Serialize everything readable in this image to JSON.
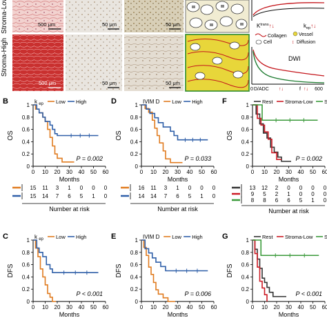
{
  "colors": {
    "low": "#e07b1f",
    "high": "#2f5fa8",
    "rest": "#333333",
    "stroma_low": "#cc1a24",
    "stroma_high": "#3a9a3a",
    "cell_bg": "#f1ecd2",
    "stroma_fill": "#e8d63a",
    "dwi_red": "#c4161c",
    "dwi_green": "#1b7a2e"
  },
  "panel_A": {
    "row_labels": [
      "Stroma-Low",
      "Stroma-High"
    ],
    "scale_bars": [
      [
        "500 μm",
        "50 μm",
        "50 μm"
      ],
      [
        "500 μm",
        "50 μm",
        "50 μm"
      ]
    ],
    "schematic_labels": [
      "Collagen",
      "Vessel",
      "Cell",
      "Diffusion"
    ],
    "ktrans_label": "K",
    "ktrans_sup": "trans",
    "kep_label": "k",
    "kep_sub": "ep",
    "dwi_title": "DWI",
    "dwi_xlabel": "D/ADC",
    "dwi_f_label": "f",
    "dwi_x0": "0",
    "dwi_x1": "600",
    "arrows": "↑↓"
  },
  "panels": [
    {
      "letter": "B",
      "ylabel": "OS",
      "legend_title": "k",
      "legend_title_sub": "ep",
      "legend": [
        {
          "name": "Low",
          "color": "low"
        },
        {
          "name": "High",
          "color": "high"
        }
      ],
      "pvalue": "P = 0.002",
      "xlabel": "Months",
      "risk_rows": [
        [
          "15",
          "11",
          "3",
          "1",
          "0",
          "0",
          "0"
        ],
        [
          "15",
          "14",
          "7",
          "6",
          "5",
          "1",
          "0"
        ]
      ],
      "risk_label": "Number at risk"
    },
    {
      "letter": "D",
      "ylabel": "OS",
      "legend_title": "IVIM D",
      "legend_title_sub": "",
      "legend": [
        {
          "name": "Low",
          "color": "low"
        },
        {
          "name": "High",
          "color": "high"
        }
      ],
      "pvalue": "P = 0.033",
      "xlabel": "Months",
      "risk_rows": [
        [
          "16",
          "11",
          "3",
          "1",
          "0",
          "0",
          "0"
        ],
        [
          "14",
          "14",
          "7",
          "6",
          "5",
          "1",
          "0"
        ]
      ],
      "risk_label": "Number at risk"
    },
    {
      "letter": "F",
      "ylabel": "OS",
      "legend_title": "",
      "legend_title_sub": "",
      "legend": [
        {
          "name": "Rest",
          "color": "rest"
        },
        {
          "name": "Stroma-Low",
          "color": "stroma_low"
        },
        {
          "name": "Stroma-High",
          "color": "stroma_high"
        }
      ],
      "pvalue": "P = 0.002",
      "xlabel": "Months",
      "risk_rows": [
        [
          "13",
          "12",
          "2",
          "0",
          "0",
          "0",
          "0"
        ],
        [
          "9",
          "5",
          "2",
          "1",
          "0",
          "0",
          "0"
        ],
        [
          "8",
          "8",
          "6",
          "6",
          "5",
          "1",
          "0"
        ]
      ],
      "risk_label": "Number at risk"
    },
    {
      "letter": "C",
      "ylabel": "DFS",
      "legend_title": "k",
      "legend_title_sub": "ep",
      "legend": [
        {
          "name": "Low",
          "color": "low"
        },
        {
          "name": "High",
          "color": "high"
        }
      ],
      "pvalue": "P < 0.001",
      "xlabel": "Months",
      "risk_rows": [],
      "risk_label": ""
    },
    {
      "letter": "E",
      "ylabel": "DFS",
      "legend_title": "IVIM D",
      "legend_title_sub": "",
      "legend": [
        {
          "name": "Low",
          "color": "low"
        },
        {
          "name": "High",
          "color": "high"
        }
      ],
      "pvalue": "P = 0.006",
      "xlabel": "Months",
      "risk_rows": [],
      "risk_label": ""
    },
    {
      "letter": "G",
      "ylabel": "DFS",
      "legend_title": "",
      "legend_title_sub": "",
      "legend": [
        {
          "name": "Rest",
          "color": "rest"
        },
        {
          "name": "Stroma-Low",
          "color": "stroma_low"
        },
        {
          "name": "Stroma-High",
          "color": "stroma_high"
        }
      ],
      "pvalue": "P < 0.001",
      "xlabel": "Months",
      "risk_rows": [],
      "risk_label": ""
    }
  ],
  "chart_data": [
    {
      "panel": "B",
      "type": "line",
      "ylabel": "OS",
      "xlabel": "Months",
      "xlim": [
        0,
        60
      ],
      "ylim": [
        0,
        1.0
      ],
      "xticks": [
        0,
        10,
        20,
        30,
        40,
        50,
        60
      ],
      "yticks": [
        0,
        0.2,
        0.4,
        0.6,
        0.8,
        1.0
      ],
      "series": [
        {
          "name": "Low",
          "color": "low",
          "x": [
            0,
            2,
            5,
            8,
            10,
            12,
            14,
            16,
            18,
            20,
            24,
            34
          ],
          "y": [
            1.0,
            0.93,
            0.87,
            0.8,
            0.73,
            0.6,
            0.47,
            0.33,
            0.2,
            0.13,
            0.07,
            0.07
          ]
        },
        {
          "name": "High",
          "color": "high",
          "x": [
            0,
            3,
            5,
            8,
            10,
            14,
            16,
            18,
            20,
            24,
            54
          ],
          "y": [
            1.0,
            0.93,
            0.87,
            0.8,
            0.73,
            0.67,
            0.6,
            0.53,
            0.5,
            0.5,
            0.5
          ]
        }
      ]
    },
    {
      "panel": "D",
      "type": "line",
      "ylabel": "OS",
      "xlabel": "Months",
      "xlim": [
        0,
        60
      ],
      "ylim": [
        0,
        1.0
      ],
      "xticks": [
        0,
        10,
        20,
        30,
        40,
        50,
        60
      ],
      "yticks": [
        0,
        0.2,
        0.4,
        0.6,
        0.8,
        1.0
      ],
      "series": [
        {
          "name": "Low",
          "color": "low",
          "x": [
            0,
            3,
            6,
            9,
            11,
            13,
            15,
            18,
            20,
            24,
            34
          ],
          "y": [
            1.0,
            0.94,
            0.88,
            0.75,
            0.62,
            0.5,
            0.38,
            0.25,
            0.12,
            0.06,
            0.06
          ]
        },
        {
          "name": "High",
          "color": "high",
          "x": [
            0,
            4,
            7,
            11,
            14,
            18,
            24,
            27,
            30,
            55
          ],
          "y": [
            1.0,
            0.93,
            0.86,
            0.79,
            0.71,
            0.64,
            0.57,
            0.5,
            0.43,
            0.43
          ]
        }
      ]
    },
    {
      "panel": "F",
      "type": "line",
      "ylabel": "OS",
      "xlabel": "Months",
      "xlim": [
        0,
        60
      ],
      "ylim": [
        0,
        1.0
      ],
      "xticks": [
        0,
        10,
        20,
        30,
        40,
        50,
        60
      ],
      "yticks": [
        0,
        0.2,
        0.4,
        0.6,
        0.8,
        1.0
      ],
      "series": [
        {
          "name": "Rest",
          "color": "rest",
          "x": [
            0,
            3,
            6,
            9,
            12,
            15,
            18,
            21,
            24,
            32
          ],
          "y": [
            1.0,
            0.85,
            0.69,
            0.54,
            0.46,
            0.31,
            0.23,
            0.15,
            0.08,
            0.08
          ]
        },
        {
          "name": "Stroma-Low",
          "color": "stroma_low",
          "x": [
            0,
            4,
            7,
            10,
            13,
            16,
            20,
            24
          ],
          "y": [
            1.0,
            0.78,
            0.67,
            0.56,
            0.44,
            0.22,
            0.11,
            0.11
          ]
        },
        {
          "name": "Stroma-High",
          "color": "stroma_high",
          "x": [
            0,
            8,
            54
          ],
          "y": [
            1.0,
            0.75,
            0.75
          ]
        }
      ]
    },
    {
      "panel": "C",
      "type": "line",
      "ylabel": "DFS",
      "xlabel": "Months",
      "xlim": [
        0,
        60
      ],
      "ylim": [
        0,
        1.0
      ],
      "xticks": [
        0,
        10,
        20,
        30,
        40,
        50,
        60
      ],
      "yticks": [
        0,
        0.2,
        0.4,
        0.6,
        0.8,
        1.0
      ],
      "series": [
        {
          "name": "Low",
          "color": "low",
          "x": [
            0,
            2,
            4,
            6,
            8,
            10,
            12,
            14,
            16,
            19
          ],
          "y": [
            1.0,
            0.87,
            0.73,
            0.53,
            0.4,
            0.27,
            0.13,
            0.07,
            0.0,
            0.0
          ]
        },
        {
          "name": "High",
          "color": "high",
          "x": [
            0,
            3,
            5,
            8,
            11,
            14,
            16,
            54
          ],
          "y": [
            1.0,
            0.87,
            0.8,
            0.73,
            0.6,
            0.53,
            0.47,
            0.47
          ]
        }
      ]
    },
    {
      "panel": "E",
      "type": "line",
      "ylabel": "DFS",
      "xlabel": "Months",
      "xlim": [
        0,
        60
      ],
      "ylim": [
        0,
        1.0
      ],
      "xticks": [
        0,
        10,
        20,
        30,
        40,
        50,
        60
      ],
      "yticks": [
        0,
        0.2,
        0.4,
        0.6,
        0.8,
        1.0
      ],
      "series": [
        {
          "name": "Low",
          "color": "low",
          "x": [
            0,
            2,
            4,
            6,
            8,
            10,
            12,
            14,
            18,
            22,
            28
          ],
          "y": [
            1.0,
            0.88,
            0.75,
            0.56,
            0.44,
            0.31,
            0.19,
            0.12,
            0.06,
            0.0,
            0.0
          ]
        },
        {
          "name": "High",
          "color": "high",
          "x": [
            0,
            3,
            6,
            9,
            12,
            16,
            20,
            55
          ],
          "y": [
            1.0,
            0.86,
            0.79,
            0.71,
            0.64,
            0.57,
            0.5,
            0.5
          ]
        }
      ]
    },
    {
      "panel": "G",
      "type": "line",
      "ylabel": "DFS",
      "xlabel": "Months",
      "xlim": [
        0,
        60
      ],
      "ylim": [
        0,
        1.0
      ],
      "xticks": [
        0,
        10,
        20,
        30,
        40,
        50,
        60
      ],
      "yticks": [
        0,
        0.2,
        0.4,
        0.6,
        0.8,
        1.0
      ],
      "series": [
        {
          "name": "Rest",
          "color": "rest",
          "x": [
            0,
            2,
            4,
            6,
            8,
            10,
            12,
            14,
            17,
            20,
            28
          ],
          "y": [
            1.0,
            0.85,
            0.69,
            0.54,
            0.38,
            0.31,
            0.23,
            0.15,
            0.08,
            0.08,
            0.08
          ]
        },
        {
          "name": "Stroma-Low",
          "color": "stroma_low",
          "x": [
            0,
            2,
            4,
            6,
            8,
            10,
            12
          ],
          "y": [
            1.0,
            0.78,
            0.56,
            0.33,
            0.22,
            0.11,
            0.0
          ]
        },
        {
          "name": "Stroma-High",
          "color": "stroma_high",
          "x": [
            0,
            7,
            55
          ],
          "y": [
            1.0,
            0.75,
            0.75
          ]
        }
      ]
    }
  ]
}
